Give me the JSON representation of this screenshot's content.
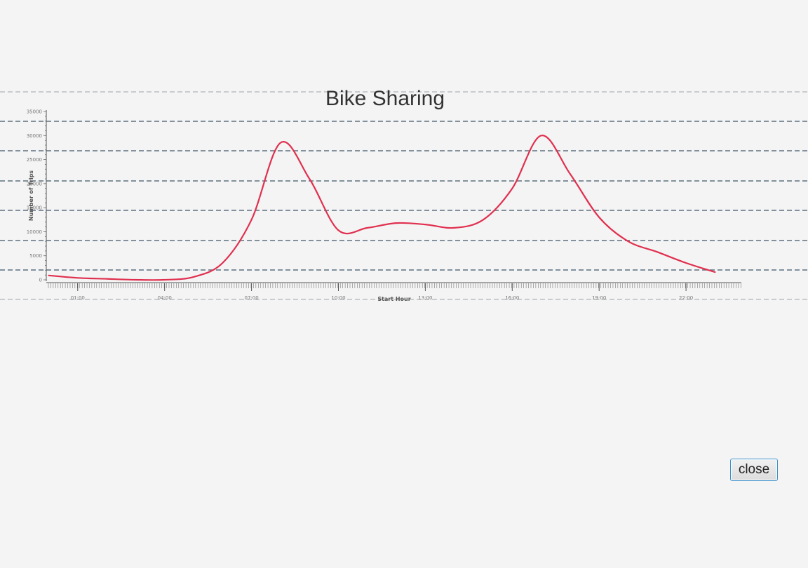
{
  "window": {
    "close_label": "close"
  },
  "chart_data": {
    "type": "line",
    "title": "Bike Sharing",
    "xlabel": "Start Hour",
    "ylabel": "Number of Trips",
    "x_tick_labels": [
      "01:00",
      "04:00",
      "07:00",
      "10:00",
      "13:00",
      "16:00",
      "19:00",
      "22:00"
    ],
    "y_tick_labels": [
      "0",
      "5000",
      "10000",
      "15000",
      "20000",
      "25000",
      "30000",
      "35000"
    ],
    "ylim": [
      0,
      35000
    ],
    "grid": false,
    "series": [
      {
        "color": "#e0304f",
        "x": [
          "00:00",
          "01:00",
          "02:00",
          "03:00",
          "04:00",
          "05:00",
          "06:00",
          "07:00",
          "08:00",
          "09:00",
          "10:00",
          "11:00",
          "12:00",
          "13:00",
          "14:00",
          "15:00",
          "16:00",
          "17:00",
          "18:00",
          "19:00",
          "20:00",
          "21:00",
          "22:00",
          "23:00"
        ],
        "values": [
          900,
          400,
          200,
          0,
          0,
          600,
          3500,
          12500,
          28500,
          21000,
          10300,
          10800,
          11800,
          11500,
          10800,
          12500,
          19000,
          30000,
          22000,
          13000,
          8000,
          5800,
          3500,
          1600
        ]
      }
    ]
  }
}
